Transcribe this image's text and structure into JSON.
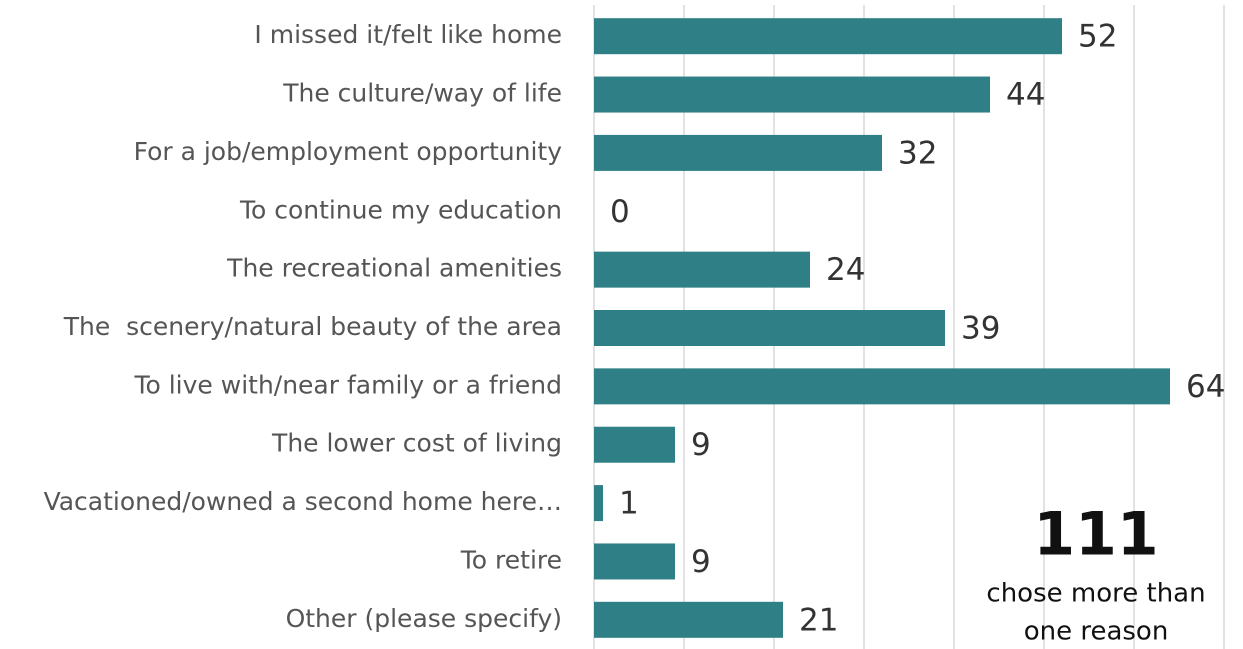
{
  "chart_data": {
    "type": "barh",
    "categories": [
      "I missed it/felt like home",
      "The culture/way of life",
      "For a job/employment opportunity",
      "To continue my education",
      "The recreational amenities",
      "The  scenery/natural beauty of the area",
      "To live with/near family or a friend",
      "The lower cost of living",
      "Vacationed/owned a second home here…",
      "To retire",
      "Other (please specify)"
    ],
    "values": [
      52,
      44,
      32,
      0,
      24,
      39,
      64,
      9,
      1,
      9,
      21
    ],
    "color": "#2e7f86",
    "xlim": [
      0,
      70
    ],
    "xticks": [
      0,
      10,
      20,
      30,
      40,
      50,
      60,
      70
    ],
    "grid": true,
    "annotation": {
      "number": "111",
      "lines": [
        "chose more than",
        "one reason"
      ]
    }
  }
}
